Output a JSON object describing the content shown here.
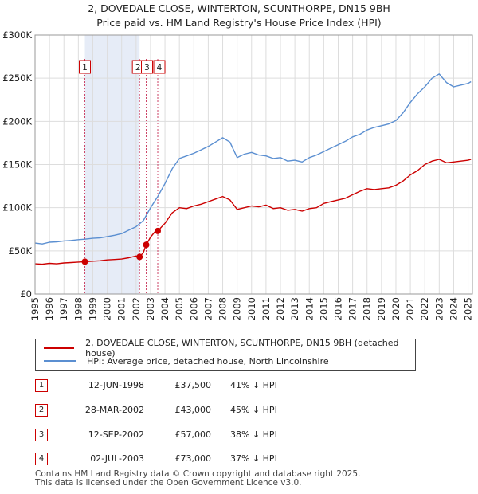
{
  "header": {
    "title": "2, DOVEDALE CLOSE, WINTERTON, SCUNTHORPE, DN15 9BH",
    "subtitle": "Price paid vs. HM Land Registry's House Price Index (HPI)"
  },
  "legend": {
    "property": "2, DOVEDALE CLOSE, WINTERTON, SCUNTHORPE, DN15 9BH (detached house)",
    "hpi": "HPI: Average price, detached house, North Lincolnshire"
  },
  "transactions": [
    {
      "num": "1",
      "date": "12-JUN-1998",
      "price": "£37,500",
      "hpi": "41% ↓ HPI"
    },
    {
      "num": "2",
      "date": "28-MAR-2002",
      "price": "£43,000",
      "hpi": "45% ↓ HPI"
    },
    {
      "num": "3",
      "date": "12-SEP-2002",
      "price": "£57,000",
      "hpi": "38% ↓ HPI"
    },
    {
      "num": "4",
      "date": "02-JUL-2003",
      "price": "£73,000",
      "hpi": "37% ↓ HPI"
    }
  ],
  "footer": {
    "line1": "Contains HM Land Registry data © Crown copyright and database right 2025.",
    "line2": "This data is licensed under the Open Government Licence v3.0."
  },
  "colors": {
    "property": "#cc0000",
    "hpi": "#5b8fd1",
    "shade": "#e6ecf7",
    "grid": "#dddddd",
    "marker_line": "#cc4466"
  },
  "chart_data": {
    "type": "line",
    "title": "2, DOVEDALE CLOSE, WINTERTON, SCUNTHORPE, DN15 9BH",
    "subtitle": "Price paid vs. HM Land Registry's House Price Index (HPI)",
    "xlabel": "",
    "ylabel": "",
    "xlim": [
      1995,
      2025.3
    ],
    "ylim": [
      0,
      300000
    ],
    "y_ticks": [
      0,
      50000,
      100000,
      150000,
      200000,
      250000,
      300000
    ],
    "y_tick_labels": [
      "£0",
      "£50K",
      "£100K",
      "£150K",
      "£200K",
      "£250K",
      "£300K"
    ],
    "x_ticks": [
      1995,
      1996,
      1997,
      1998,
      1999,
      2000,
      2001,
      2002,
      2003,
      2004,
      2005,
      2006,
      2007,
      2008,
      2009,
      2010,
      2011,
      2012,
      2013,
      2014,
      2015,
      2016,
      2017,
      2018,
      2019,
      2020,
      2021,
      2022,
      2023,
      2024,
      2025
    ],
    "grid": true,
    "shaded_region": [
      1998.45,
      2002.24
    ],
    "series": [
      {
        "name": "2, DOVEDALE CLOSE, WINTERTON, SCUNTHORPE, DN15 9BH (detached house)",
        "x": [
          1995,
          1995.5,
          1996,
          1996.5,
          1997,
          1997.5,
          1998,
          1998.45,
          1999,
          1999.5,
          2000,
          2000.5,
          2001,
          2001.5,
          2002,
          2002.24,
          2002.5,
          2002.7,
          2003,
          2003.3,
          2003.5,
          2004,
          2004.5,
          2005,
          2005.5,
          2006,
          2006.5,
          2007,
          2007.5,
          2008,
          2008.5,
          2009,
          2009.5,
          2010,
          2010.5,
          2011,
          2011.5,
          2012,
          2012.5,
          2013,
          2013.5,
          2014,
          2014.5,
          2015,
          2015.5,
          2016,
          2016.5,
          2017,
          2017.5,
          2018,
          2018.5,
          2019,
          2019.5,
          2020,
          2020.5,
          2021,
          2021.5,
          2022,
          2022.5,
          2023,
          2023.5,
          2024,
          2024.5,
          2025,
          2025.2
        ],
        "values": [
          35000,
          34500,
          35500,
          35000,
          36000,
          36500,
          37000,
          37500,
          38000,
          38500,
          39500,
          40000,
          40500,
          42000,
          44000,
          43000,
          48000,
          57000,
          66000,
          72000,
          73000,
          82000,
          94000,
          100000,
          99000,
          102000,
          104000,
          107000,
          110000,
          113000,
          109000,
          98000,
          100000,
          102000,
          101000,
          103000,
          99000,
          100000,
          97000,
          98000,
          96000,
          99000,
          100000,
          105000,
          107000,
          109000,
          111000,
          115000,
          119000,
          122000,
          121000,
          122000,
          123000,
          126000,
          131000,
          138000,
          143000,
          150000,
          154000,
          156000,
          152000,
          153000,
          154000,
          155000,
          156000
        ]
      },
      {
        "name": "HPI: Average price, detached house, North Lincolnshire",
        "x": [
          1995,
          1995.5,
          1996,
          1996.5,
          1997,
          1997.5,
          1998,
          1998.45,
          1999,
          1999.5,
          2000,
          2000.5,
          2001,
          2001.5,
          2002,
          2002.5,
          2003,
          2003.5,
          2004,
          2004.5,
          2005,
          2005.5,
          2006,
          2006.5,
          2007,
          2007.5,
          2008,
          2008.5,
          2009,
          2009.5,
          2010,
          2010.5,
          2011,
          2011.5,
          2012,
          2012.5,
          2013,
          2013.5,
          2014,
          2014.5,
          2015,
          2015.5,
          2016,
          2016.5,
          2017,
          2017.5,
          2018,
          2018.5,
          2019,
          2019.5,
          2020,
          2020.5,
          2021,
          2021.5,
          2022,
          2022.5,
          2023,
          2023.5,
          2024,
          2024.5,
          2025,
          2025.2
        ],
        "values": [
          59000,
          58000,
          60000,
          60500,
          61500,
          62000,
          63000,
          63500,
          64500,
          65000,
          66500,
          68000,
          70000,
          74000,
          78000,
          85000,
          100000,
          113000,
          128000,
          145000,
          157000,
          160000,
          163000,
          167000,
          171000,
          176000,
          181000,
          176000,
          158000,
          162000,
          164000,
          161000,
          160000,
          157000,
          158000,
          154000,
          155000,
          153000,
          158000,
          161000,
          165000,
          169000,
          173000,
          177000,
          182000,
          185000,
          190000,
          193000,
          195000,
          197000,
          201000,
          210000,
          222000,
          232000,
          240000,
          250000,
          255000,
          245000,
          240000,
          242000,
          244000,
          246000
        ]
      }
    ],
    "markers": [
      {
        "label": "1",
        "x": 1998.45,
        "y": 37500
      },
      {
        "label": "2",
        "x": 2002.24,
        "y": 43000
      },
      {
        "label": "3",
        "x": 2002.7,
        "y": 57000
      },
      {
        "label": "4",
        "x": 2003.5,
        "y": 73000
      }
    ]
  }
}
